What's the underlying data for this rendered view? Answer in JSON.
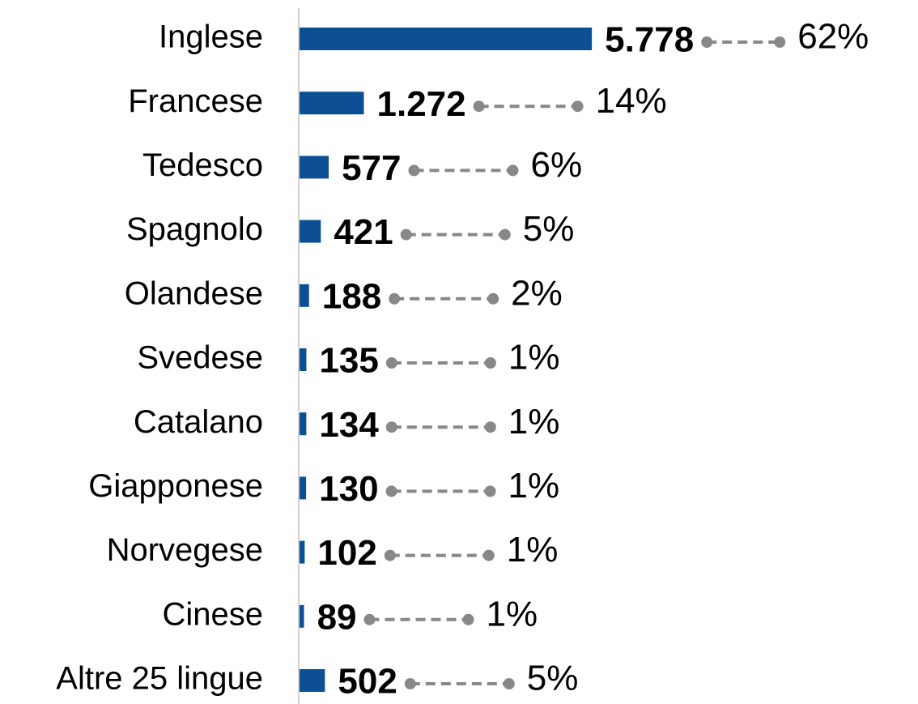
{
  "chart_data": {
    "type": "bar",
    "orientation": "horizontal",
    "categories": [
      "Inglese",
      "Francese",
      "Tedesco",
      "Spagnolo",
      "Olandese",
      "Svedese",
      "Catalano",
      "Giapponese",
      "Norvegese",
      "Cinese",
      "Altre 25 lingue"
    ],
    "values": [
      5778,
      1272,
      577,
      421,
      188,
      135,
      134,
      130,
      102,
      89,
      502
    ],
    "value_labels": [
      "5.778",
      "1.272",
      "577",
      "421",
      "188",
      "135",
      "134",
      "130",
      "102",
      "89",
      "502"
    ],
    "shares": [
      62,
      14,
      6,
      5,
      2,
      1,
      1,
      1,
      1,
      1,
      5
    ],
    "share_labels": [
      "62%",
      "14%",
      "6%",
      "5%",
      "2%",
      "1%",
      "1%",
      "1%",
      "1%",
      "1%",
      "5%"
    ],
    "color": "#0d4f94"
  }
}
